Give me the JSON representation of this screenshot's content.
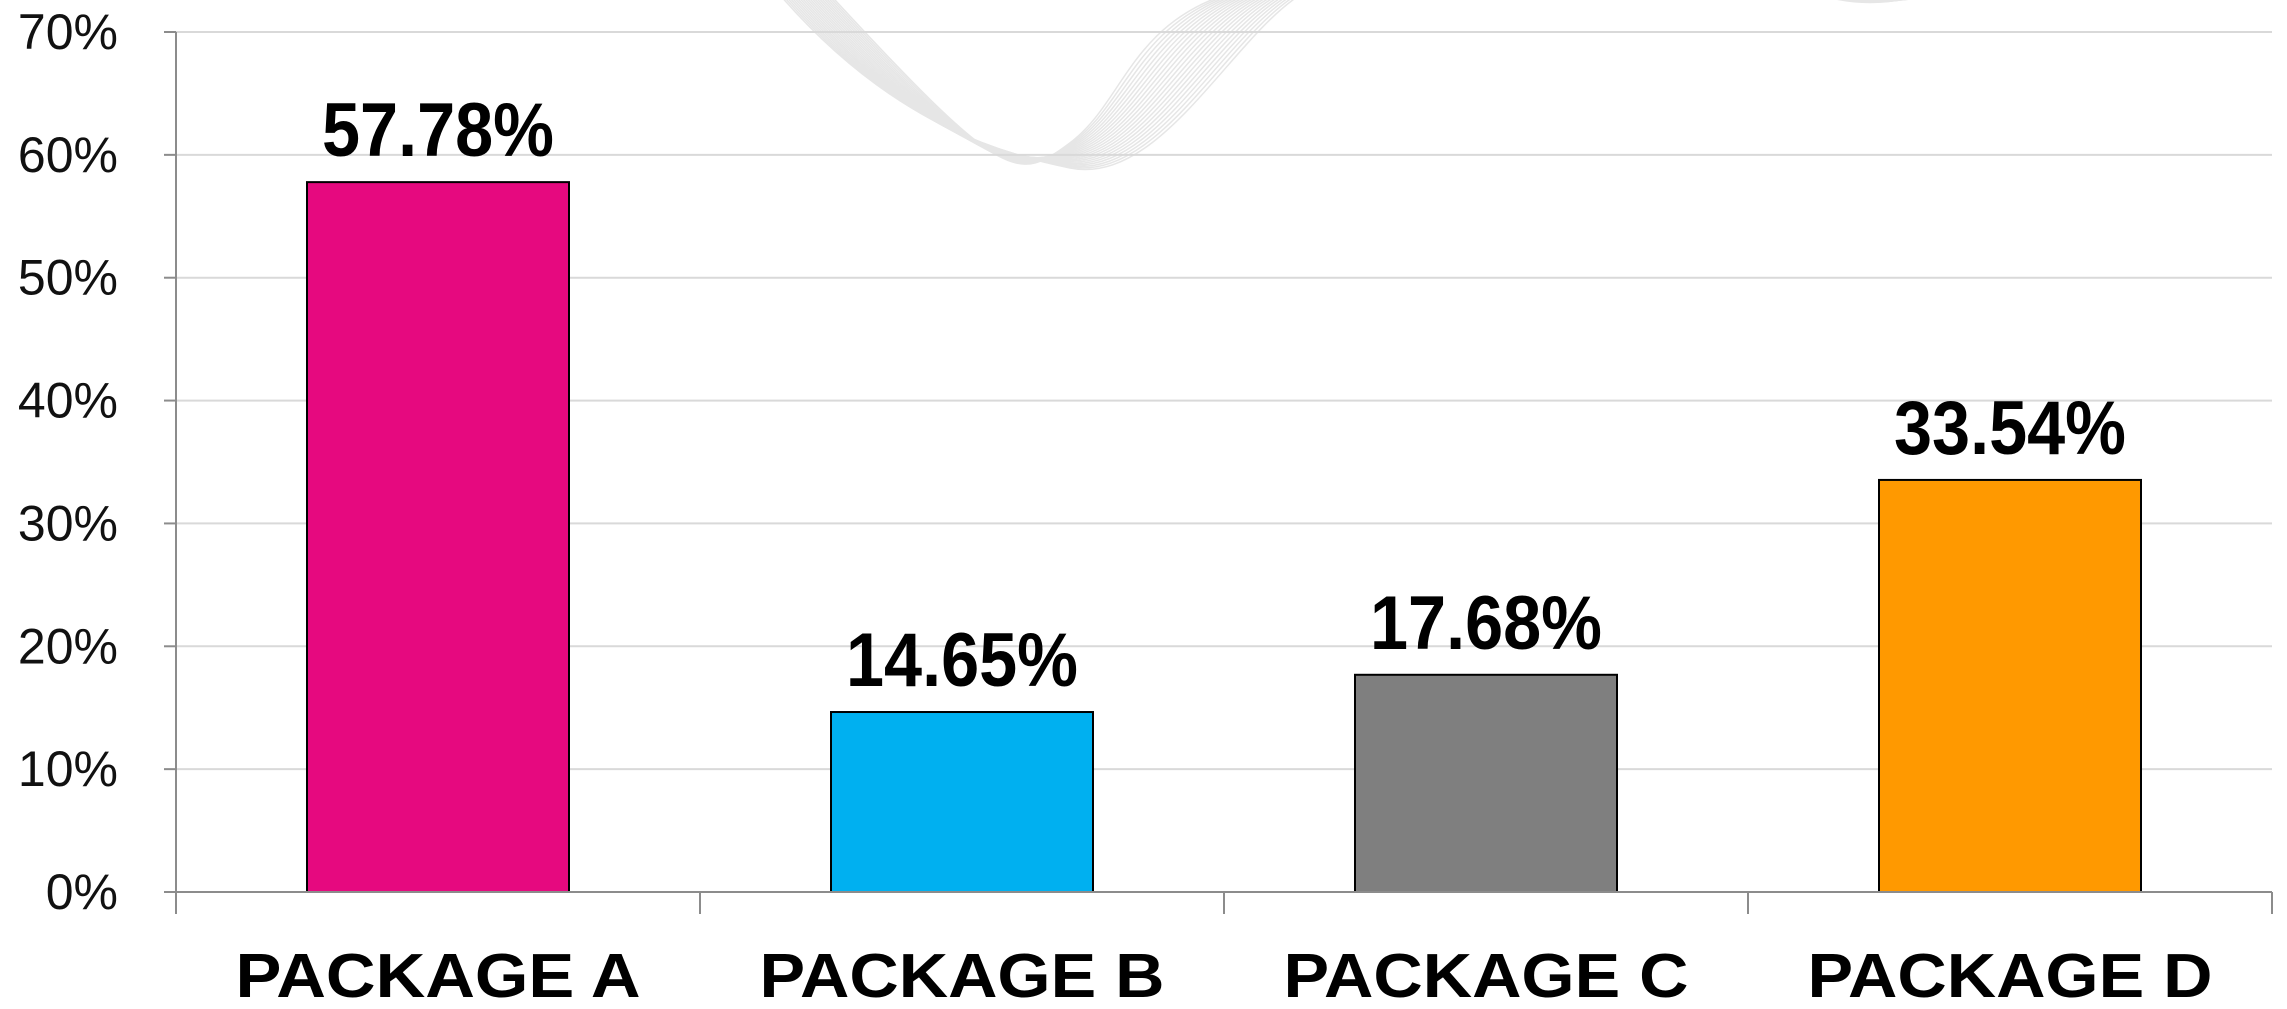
{
  "chart_data": {
    "type": "bar",
    "title": "",
    "xlabel": "",
    "ylabel": "",
    "categories": [
      "PACKAGE A",
      "PACKAGE B",
      "PACKAGE C",
      "PACKAGE D"
    ],
    "values": [
      57.78,
      14.65,
      17.68,
      33.54
    ],
    "data_labels": [
      "57.78%",
      "14.65%",
      "17.68%",
      "33.54%"
    ],
    "bar_colors": [
      "#e6097f",
      "#00b0f0",
      "#7f7f7f",
      "#ff9900"
    ],
    "ylim": [
      0,
      70
    ],
    "y_ticks": [
      0,
      10,
      20,
      30,
      40,
      50,
      60,
      70
    ],
    "y_tick_labels": [
      "0%",
      "10%",
      "20%",
      "30%",
      "40%",
      "50%",
      "60%",
      "70%"
    ],
    "grid": true,
    "legend": "none"
  }
}
